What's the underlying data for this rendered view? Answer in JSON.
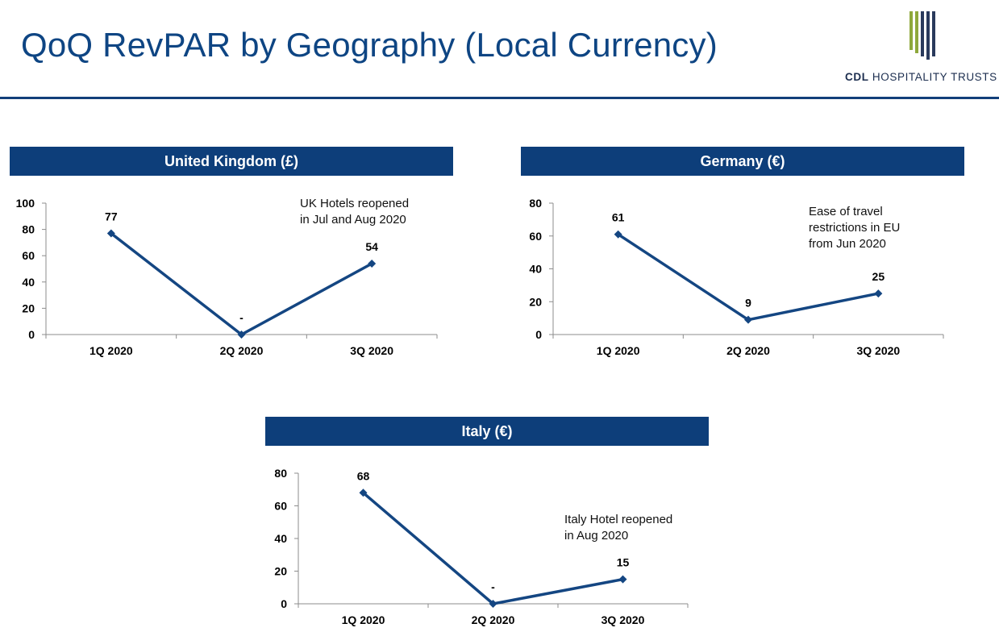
{
  "title": "QoQ RevPAR by Geography (Local Currency)",
  "logo": {
    "brand": "CDL",
    "rest": "HOSPITALITY TRUSTS"
  },
  "colors": {
    "line": "#144682",
    "header": "#0d3e7a",
    "title": "#0e4583",
    "logo_green": "#8ea83b",
    "logo_navy": "#2a3a5c"
  },
  "chart_data": [
    {
      "type": "line",
      "title": "United Kingdom (£)",
      "categories": [
        "1Q 2020",
        "2Q 2020",
        "3Q 2020"
      ],
      "values": [
        77,
        0,
        54
      ],
      "data_labels": [
        "77",
        "-",
        "54"
      ],
      "yticks": [
        "0",
        "20",
        "40",
        "60",
        "80",
        "100"
      ],
      "ylim": [
        0,
        100
      ],
      "annotation": "UK Hotels reopened\nin Jul and Aug 2020"
    },
    {
      "type": "line",
      "title": "Germany (€)",
      "categories": [
        "1Q 2020",
        "2Q 2020",
        "3Q 2020"
      ],
      "values": [
        61,
        9,
        25
      ],
      "data_labels": [
        "61",
        "9",
        "25"
      ],
      "yticks": [
        "0",
        "20",
        "40",
        "60",
        "80"
      ],
      "ylim": [
        0,
        80
      ],
      "annotation": "Ease of travel\nrestrictions in EU\nfrom Jun 2020"
    },
    {
      "type": "line",
      "title": "Italy (€)",
      "categories": [
        "1Q 2020",
        "2Q 2020",
        "3Q 2020"
      ],
      "values": [
        68,
        0,
        15
      ],
      "data_labels": [
        "68",
        "-",
        "15"
      ],
      "yticks": [
        "0",
        "20",
        "40",
        "60",
        "80"
      ],
      "ylim": [
        0,
        80
      ],
      "annotation": "Italy Hotel reopened\nin Aug 2020"
    }
  ]
}
